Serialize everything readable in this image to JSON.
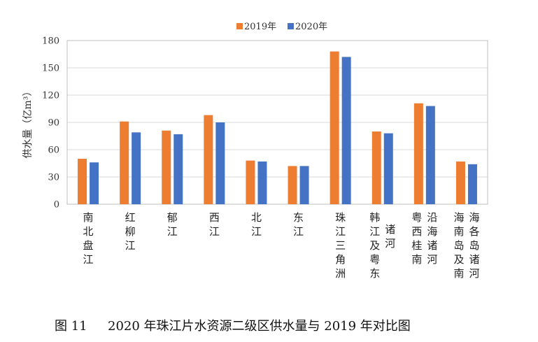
{
  "chart_data": {
    "type": "bar",
    "title": "",
    "xlabel": "",
    "ylabel": "供水量（亿m³）",
    "ylim": [
      0,
      180
    ],
    "yticks": [
      0,
      30,
      60,
      90,
      120,
      150,
      180
    ],
    "grid": true,
    "legend_position": "top",
    "categories": [
      {
        "name": "南北盘江",
        "columns": [
          "南北盘江"
        ]
      },
      {
        "name": "红柳江",
        "columns": [
          "红柳江"
        ]
      },
      {
        "name": "郁江",
        "columns": [
          "郁江"
        ]
      },
      {
        "name": "西江",
        "columns": [
          "西江"
        ]
      },
      {
        "name": "北江",
        "columns": [
          "北江"
        ]
      },
      {
        "name": "东江",
        "columns": [
          "东江"
        ]
      },
      {
        "name": "珠江三角洲",
        "columns": [
          "珠江三角洲"
        ]
      },
      {
        "name": "韩江及粤东诸河",
        "columns": [
          "韩江及粤东",
          "诸河"
        ]
      },
      {
        "name": "粤西桂南沿海诸河",
        "columns": [
          "粤西桂南",
          "沿海诸河"
        ]
      },
      {
        "name": "海南岛及南海各岛诸河",
        "columns": [
          "海南岛及南",
          "海各岛诸河"
        ]
      }
    ],
    "series": [
      {
        "name": "2019年",
        "color": "#ED7D31",
        "values": [
          50,
          91,
          81,
          98,
          48,
          42,
          168,
          80,
          111,
          47
        ]
      },
      {
        "name": "2020年",
        "color": "#4472C4",
        "values": [
          46,
          79,
          77,
          90,
          47,
          42,
          162,
          78,
          108,
          44
        ]
      }
    ]
  },
  "caption": {
    "figure_number": "图 11",
    "text": "2020 年珠江片水资源二级区供水量与 2019 年对比图"
  }
}
